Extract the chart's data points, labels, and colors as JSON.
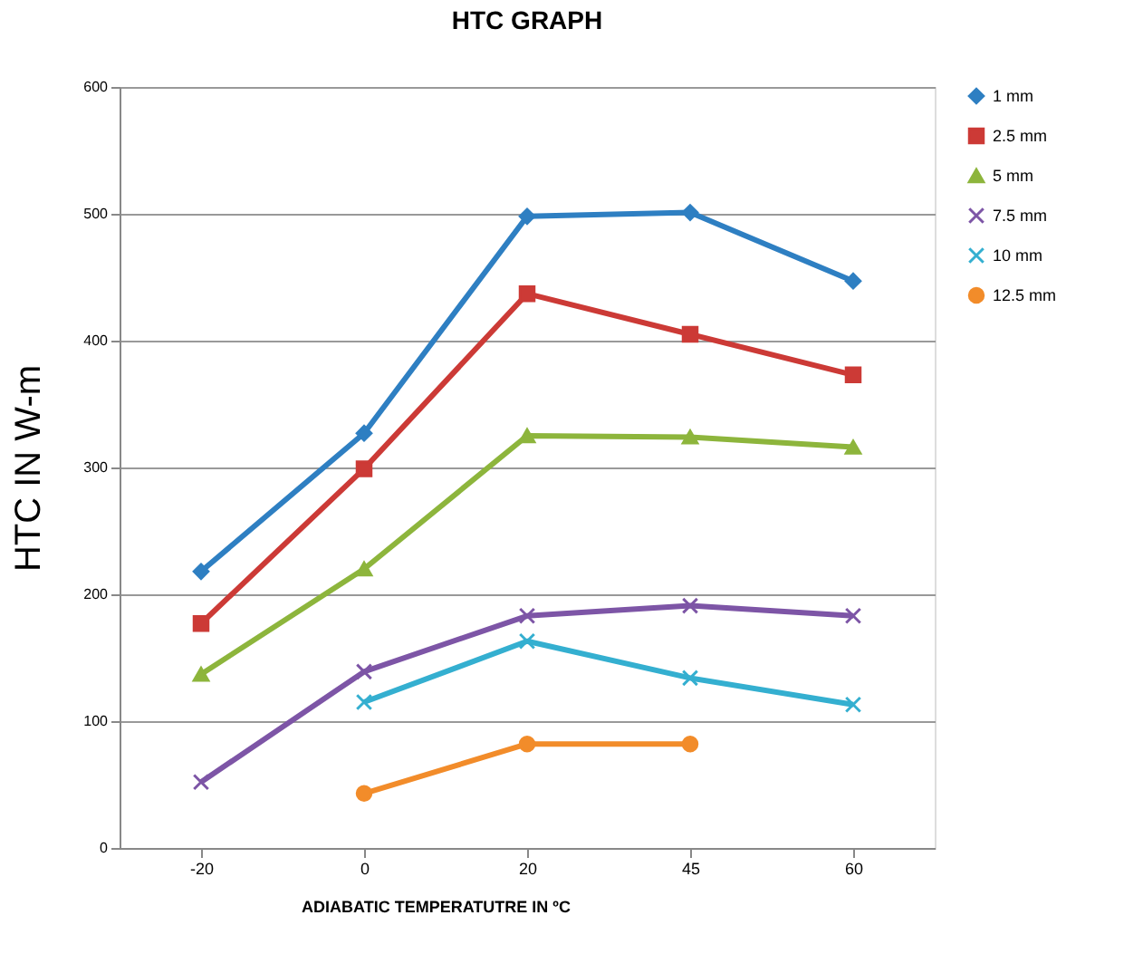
{
  "chart_data": {
    "type": "line",
    "title": "HTC GRAPH",
    "xlabel": "ADIABATIC TEMPERATUTRE  IN ºC",
    "ylabel": "HTC IN W-m",
    "categories": [
      "-20",
      "0",
      "20",
      "45",
      "60"
    ],
    "series": [
      {
        "name": "1 mm",
        "color": "#2e7fc2",
        "marker": "diamond",
        "values": [
          218,
          327,
          498,
          501,
          447
        ]
      },
      {
        "name": "2.5 mm",
        "color": "#cc3a36",
        "marker": "square",
        "values": [
          177,
          299,
          437,
          405,
          373
        ]
      },
      {
        "name": "5 mm",
        "color": "#8db53c",
        "marker": "triangle",
        "values": [
          137,
          220,
          325,
          324,
          316
        ]
      },
      {
        "name": "7.5 mm",
        "color": "#7d55a6",
        "marker": "cross",
        "values": [
          52,
          139,
          183,
          191,
          183
        ]
      },
      {
        "name": "10 mm",
        "color": "#34afd0",
        "marker": "cross",
        "values": [
          null,
          115,
          163,
          134,
          113
        ]
      },
      {
        "name": "12.5 mm",
        "color": "#f28c2a",
        "marker": "circle",
        "values": [
          null,
          43,
          82,
          82,
          null
        ]
      }
    ],
    "ylim": [
      0,
      600
    ],
    "yticks": [
      0,
      100,
      200,
      300,
      400,
      500,
      600
    ],
    "grid": "y",
    "legend": "right"
  }
}
